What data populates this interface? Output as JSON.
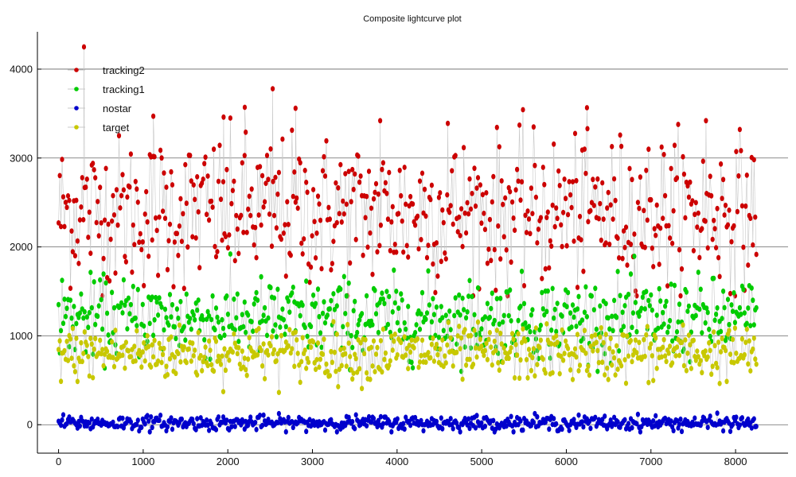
{
  "chart_data": {
    "type": "scatter",
    "title": "Composite lightcurve plot",
    "xlabel": "",
    "ylabel": "",
    "xlim": [
      -250,
      8620
    ],
    "ylim": [
      -320,
      4420
    ],
    "x_ticks": [
      0,
      1000,
      2000,
      3000,
      4000,
      5000,
      6000,
      7000,
      8000
    ],
    "y_ticks": [
      0,
      1000,
      2000,
      3000,
      4000
    ],
    "grid": "horizontal",
    "legend_position": "top-left",
    "x_range": [
      0,
      8250
    ],
    "series": [
      {
        "name": "tracking2",
        "color": "#cc0000",
        "typical_mean": 2400,
        "typical_spread": 420,
        "min": 1450,
        "max": 4250,
        "notable_points": [
          [
            300,
            4250
          ],
          [
            2530,
            3780
          ],
          [
            2200,
            3570
          ],
          [
            2800,
            3560
          ],
          [
            1120,
            3470
          ],
          [
            1950,
            3460
          ],
          [
            3800,
            3420
          ],
          [
            7650,
            3420
          ],
          [
            4600,
            3390
          ],
          [
            6250,
            3330
          ]
        ]
      },
      {
        "name": "tracking1",
        "color": "#00cc00",
        "typical_mean": 1200,
        "typical_spread": 220,
        "min": 600,
        "max": 2000
      },
      {
        "name": "nostar",
        "color": "#0000cc",
        "typical_mean": 20,
        "typical_spread": 40,
        "min": -80,
        "max": 140
      },
      {
        "name": "target",
        "color": "#c8c800",
        "typical_mean": 800,
        "typical_spread": 150,
        "min": 250,
        "max": 1300
      }
    ]
  },
  "legend": [
    {
      "label": "tracking2",
      "color": "#cc0000"
    },
    {
      "label": "tracking1",
      "color": "#00cc00"
    },
    {
      "label": "nostar",
      "color": "#0000cc"
    },
    {
      "label": "target",
      "color": "#c8c800"
    }
  ]
}
